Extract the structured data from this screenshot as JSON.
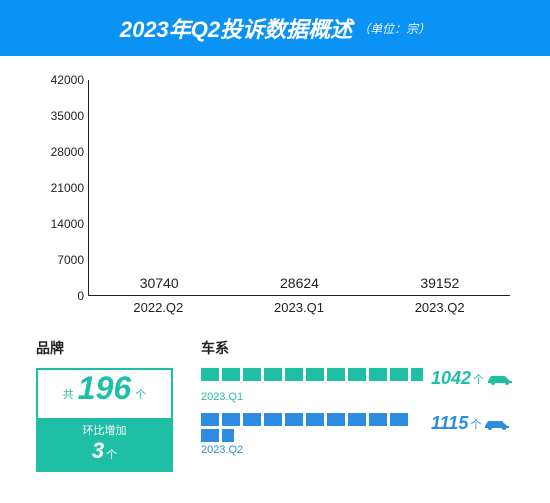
{
  "colors": {
    "header_bg": "#0a93f5",
    "teal": "#1ebfa5",
    "blue": "#2d8ce0",
    "text": "#222222",
    "bg": "#ffffff"
  },
  "header": {
    "title": "2023年Q2投诉数据概述",
    "unit": "（单位：宗）",
    "title_fontsize": 22,
    "unit_fontsize": 12
  },
  "bar_chart": {
    "type": "bar",
    "ylim": [
      0,
      42000
    ],
    "ytick_step": 7000,
    "yticks": [
      0,
      7000,
      14000,
      21000,
      28000,
      35000,
      42000
    ],
    "categories": [
      "2022.Q2",
      "2023.Q1",
      "2023.Q2"
    ],
    "values": [
      30740,
      28624,
      39152
    ],
    "bar_colors": [
      "#1ebfa5",
      "#1ebfa5",
      "#2d8ce0"
    ],
    "bar_width": 0.7,
    "value_label_fontsize": 14,
    "axis_label_fontsize": 13,
    "tick_fontsize": 12
  },
  "brand": {
    "title": "品牌",
    "prefix": "共",
    "count": "196",
    "suffix": "个",
    "delta_label": "环比增加",
    "delta_value": "3",
    "delta_unit": "个",
    "border_color": "#1ebfa5",
    "count_color": "#1ebfa5",
    "delta_bg": "#1ebfa5"
  },
  "series": {
    "title": "车系",
    "rows": [
      {
        "label": "2023.Q1",
        "total": "1042",
        "unit": "个",
        "color": "#1ebfa5",
        "full_blocks": 10,
        "partial_block": true
      },
      {
        "label": "2023.Q2",
        "total": "1115",
        "unit": "个",
        "color": "#2d8ce0",
        "full_blocks": 11,
        "partial_block": true
      }
    ]
  }
}
